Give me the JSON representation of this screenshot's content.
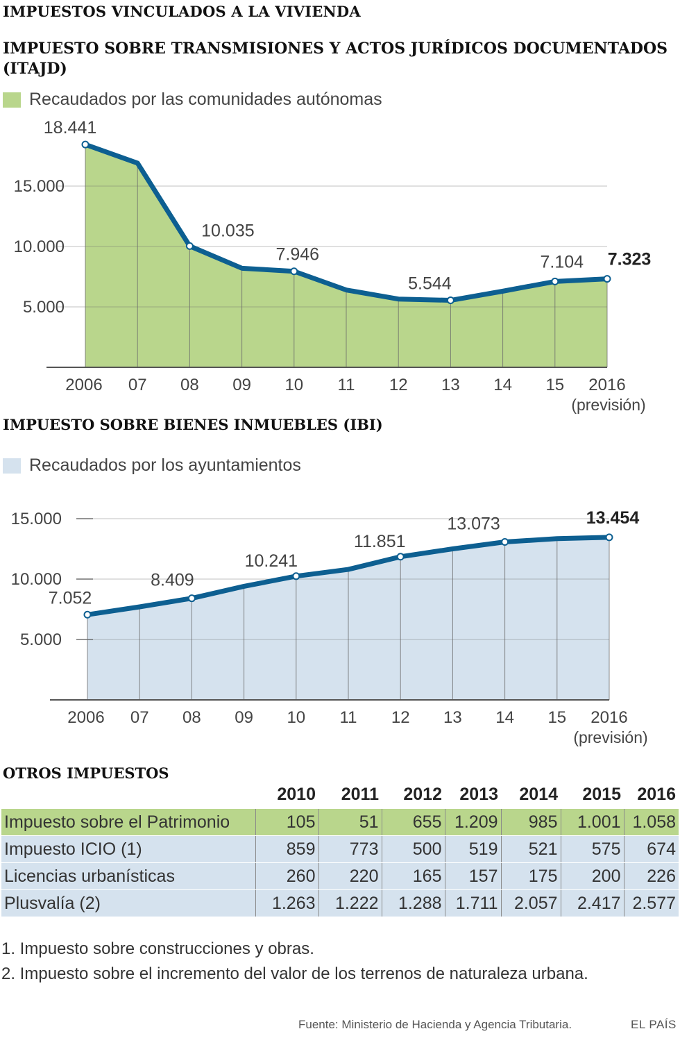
{
  "title": "IMPUESTOS VINCULADOS A LA VIVIENDA",
  "colors": {
    "line": "#0d5f91",
    "area_green": "#b9d68c",
    "area_blue": "#d5e2ee",
    "grid": "#6b6b6b"
  },
  "chart_data": [
    {
      "type": "area",
      "title": "IMPUESTO SOBRE TRANSMISIONES Y ACTOS JURÍDICOS DOCUMENTADOS (ITAJD)",
      "legend": "Recaudados por las comunidades autónomas",
      "categories": [
        "2006",
        "07",
        "08",
        "09",
        "10",
        "11",
        "12",
        "13",
        "14",
        "15",
        "2016"
      ],
      "category_note": "(previsión)",
      "values": [
        18441,
        16900,
        10035,
        8200,
        7946,
        6400,
        5650,
        5544,
        6300,
        7104,
        7323
      ],
      "data_labels": [
        {
          "index": 0,
          "text": "18.441",
          "bold": false
        },
        {
          "index": 2,
          "text": "10.035",
          "bold": false
        },
        {
          "index": 4,
          "text": "7.946",
          "bold": false
        },
        {
          "index": 7,
          "text": "5.544",
          "bold": false
        },
        {
          "index": 9,
          "text": "7.104",
          "bold": false
        },
        {
          "index": 10,
          "text": "7.323",
          "bold": true
        }
      ],
      "markers": [
        0,
        2,
        4,
        7,
        9,
        10
      ],
      "yticks": [
        {
          "value": 5000,
          "label": "5.000"
        },
        {
          "value": 10000,
          "label": "10.000"
        },
        {
          "value": 15000,
          "label": "15.000"
        }
      ],
      "ylim": [
        0,
        20000
      ],
      "legend_position": "top-left"
    },
    {
      "type": "area",
      "title": "IMPUESTO SOBRE BIENES INMUEBLES (IBI)",
      "legend": "Recaudados por los ayuntamientos",
      "categories": [
        "2006",
        "07",
        "08",
        "09",
        "10",
        "11",
        "12",
        "13",
        "14",
        "15",
        "2016"
      ],
      "category_note": "(previsión)",
      "values": [
        7052,
        7700,
        8409,
        9400,
        10241,
        10800,
        11851,
        12500,
        13073,
        13350,
        13454
      ],
      "data_labels": [
        {
          "index": 0,
          "text": "7.052",
          "bold": false
        },
        {
          "index": 2,
          "text": "8.409",
          "bold": false
        },
        {
          "index": 4,
          "text": "10.241",
          "bold": false
        },
        {
          "index": 6,
          "text": "11.851",
          "bold": false
        },
        {
          "index": 8,
          "text": "13.073",
          "bold": false
        },
        {
          "index": 10,
          "text": "13.454",
          "bold": true
        }
      ],
      "markers": [
        0,
        2,
        4,
        6,
        8,
        10
      ],
      "yticks": [
        {
          "value": 5000,
          "label": "5.000"
        },
        {
          "value": 10000,
          "label": "10.000"
        },
        {
          "value": 15000,
          "label": "15.000"
        }
      ],
      "ylim": [
        0,
        20000
      ],
      "legend_position": "top-left"
    },
    {
      "type": "table",
      "title": "OTROS IMPUESTOS",
      "columns": [
        "2010",
        "2011",
        "2012",
        "2013",
        "2014",
        "2015",
        "2016"
      ],
      "rows": [
        {
          "label": "Impuesto sobre el Patrimonio",
          "values": [
            "105",
            "51",
            "655",
            "1.209",
            "985",
            "1.001",
            "1.058"
          ],
          "style": "green"
        },
        {
          "label": "Impuesto ICIO (1)",
          "values": [
            "859",
            "773",
            "500",
            "519",
            "521",
            "575",
            "674"
          ],
          "style": "blue"
        },
        {
          "label": "Licencias urbanísticas",
          "values": [
            "260",
            "220",
            "165",
            "157",
            "175",
            "200",
            "226"
          ],
          "style": "blue"
        },
        {
          "label": "Plusvalía (2)",
          "values": [
            "1.263",
            "1.222",
            "1.288",
            "1.711",
            "2.057",
            "2.417",
            "2.577"
          ],
          "style": "blue"
        }
      ]
    }
  ],
  "notes": [
    "1. Impuesto sobre construcciones y obras.",
    "2. Impuesto sobre el incremento del valor de los terrenos de naturaleza urbana."
  ],
  "source": "Fuente: Ministerio de Hacienda y Agencia Tributaria.",
  "brand": "EL PAÍS"
}
